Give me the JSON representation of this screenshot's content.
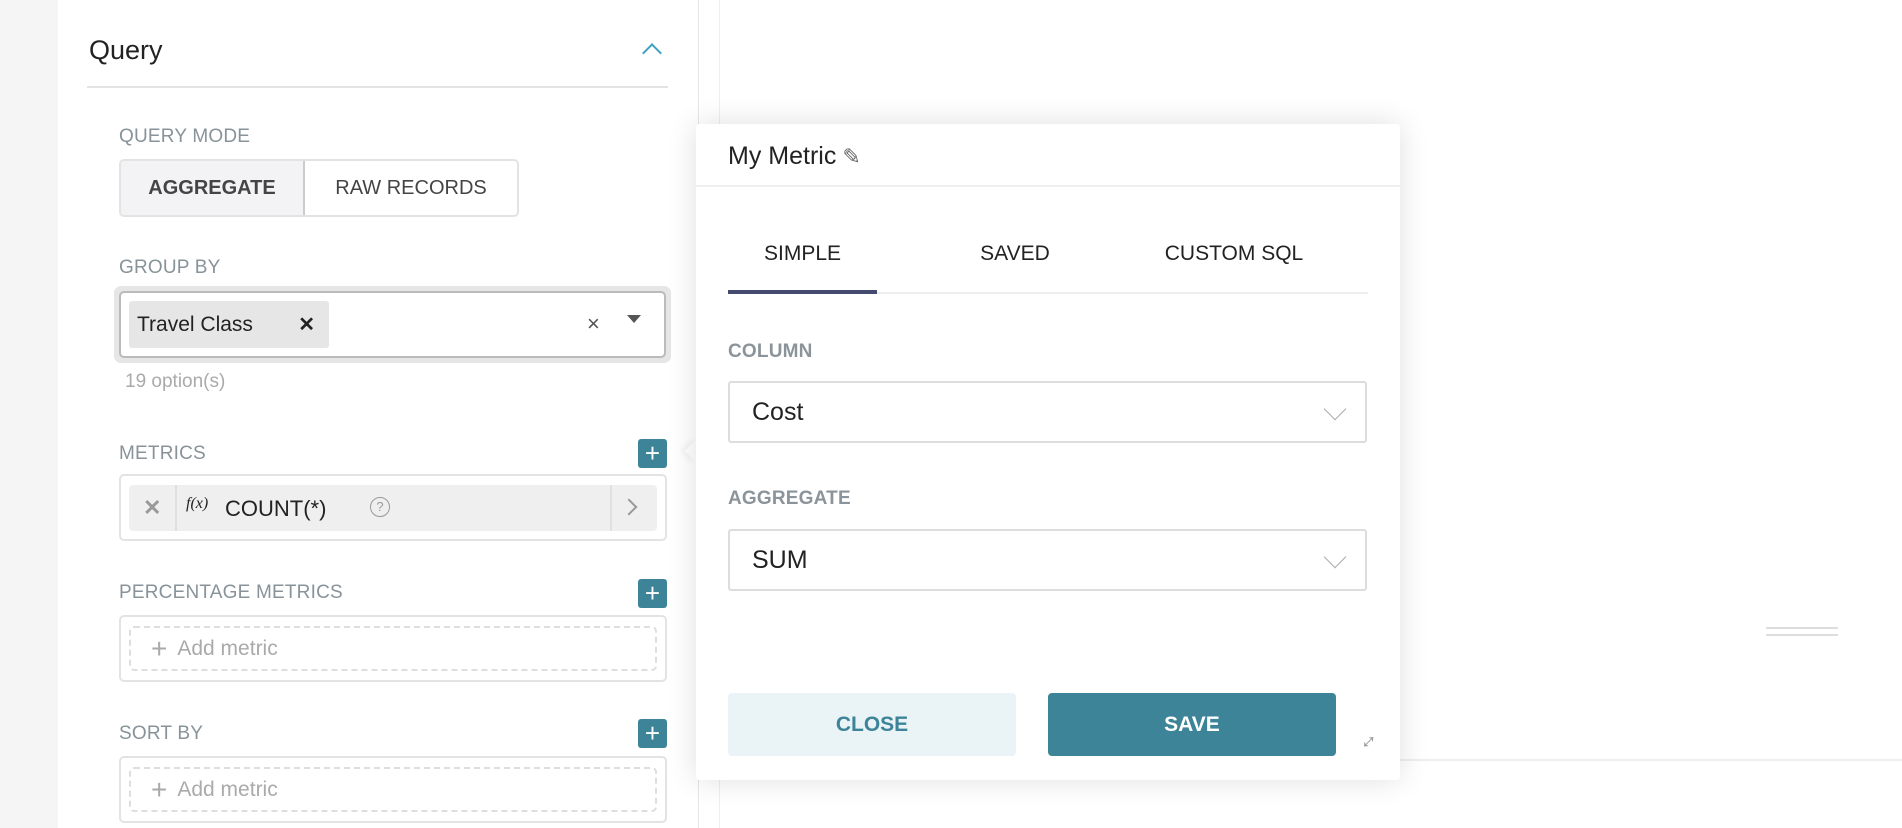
{
  "query_panel": {
    "title": "Query",
    "query_mode": {
      "label": "QUERY MODE",
      "options": [
        "AGGREGATE",
        "RAW RECORDS"
      ],
      "selected": "AGGREGATE"
    },
    "group_by": {
      "label": "GROUP BY",
      "tags": [
        "Travel Class"
      ],
      "hint": "19 option(s)"
    },
    "metrics": {
      "label": "METRICS",
      "items": [
        {
          "prefix": "f(x)",
          "name": "COUNT(*)"
        }
      ]
    },
    "percentage_metrics": {
      "label": "PERCENTAGE METRICS",
      "placeholder": "Add metric"
    },
    "sort_by": {
      "label": "SORT BY",
      "placeholder": "Add metric"
    }
  },
  "metric_popover": {
    "title": "My Metric",
    "tabs": [
      "SIMPLE",
      "SAVED",
      "CUSTOM SQL"
    ],
    "active_tab": "SIMPLE",
    "column": {
      "label": "COLUMN",
      "value": "Cost"
    },
    "aggregate": {
      "label": "AGGREGATE",
      "value": "SUM"
    },
    "close_label": "CLOSE",
    "save_label": "SAVE"
  },
  "colors": {
    "accent": "#3d8499",
    "tab_underline": "#454b6e",
    "close_bg": "#eaf4f7"
  }
}
